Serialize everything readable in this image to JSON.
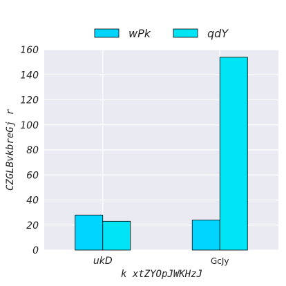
{
  "chart_data": {
    "type": "bar",
    "categories": [
      "ukD",
      "GcJy"
    ],
    "series": [
      {
        "name": "wPk",
        "values": [
          28,
          24
        ],
        "color": "#00d5ff"
      },
      {
        "name": "qdY",
        "values": [
          23,
          154
        ],
        "color": "#00e5f5"
      }
    ],
    "xlabel": "k xtZYOpJWKHzJ",
    "ylabel": "CZGLBvkbreGj r",
    "ylim": [
      0,
      160
    ],
    "yticks": [
      0,
      20,
      40,
      60,
      80,
      100,
      120,
      140,
      160
    ],
    "grid": true,
    "legend_position": "top-center",
    "colors": {
      "background": "#eaeaf2",
      "grid": "#ffffff",
      "bar_edge": "#000000"
    }
  }
}
